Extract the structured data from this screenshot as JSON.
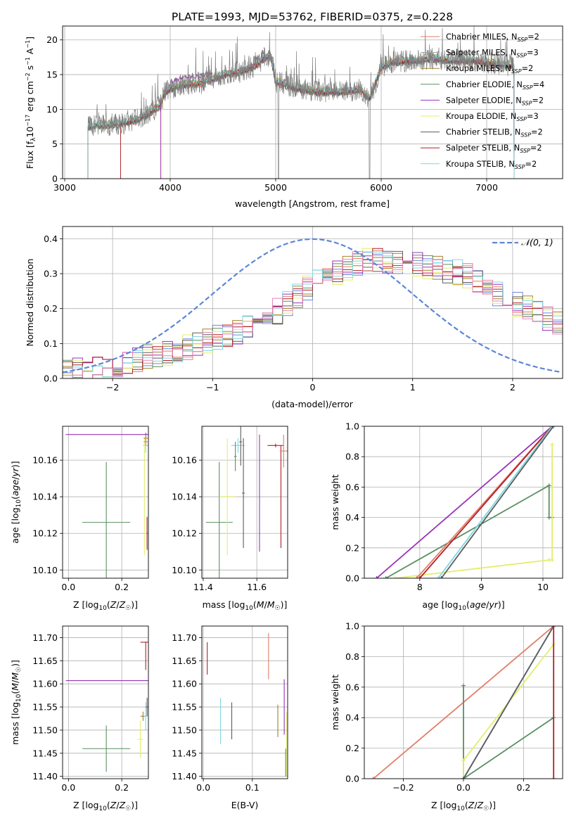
{
  "colors": {
    "chabrier_miles": "#E27E6A",
    "salpeter_miles": "#9AA6A8",
    "kroupa_miles": "#A5812A",
    "chabrier_elodie": "#5A8F62",
    "salpeter_elodie": "#9A33B8",
    "kroupa_elodie": "#E3EE6C",
    "chabrier_stelib": "#5D5D5D",
    "salpeter_stelib": "#B31F26",
    "kroupa_stelib": "#7ED8E2",
    "normal_curve": "#5B87D9",
    "spectrum_grey": "#808080"
  },
  "chart_data": [
    {
      "id": "spectrum",
      "type": "line",
      "title": "PLATE=1993, MJD=53762, FIBERID=0375, z=0.228",
      "xlabel": "wavelength [Angstrom, rest frame]",
      "ylabel": "Flux [f_λ10^-17 erg cm^-2 s^-1 A^-1]",
      "xlim": [
        2980,
        7720
      ],
      "ylim": [
        0,
        22
      ],
      "xticks": [
        3000,
        4000,
        5000,
        6000,
        7000
      ],
      "yticks": [
        0,
        5,
        10,
        15,
        20
      ],
      "legend_position": "right",
      "legend": [
        {
          "name": "Chabrier MILES, N_SSP=2",
          "color_key": "chabrier_miles"
        },
        {
          "name": "Salpeter MILES, N_SSP=3",
          "color_key": "salpeter_miles"
        },
        {
          "name": "Kroupa MILES, N_SSP=2",
          "color_key": "kroupa_miles"
        },
        {
          "name": "Chabrier ELODIE, N_SSP=4",
          "color_key": "chabrier_elodie"
        },
        {
          "name": "Salpeter ELODIE, N_SSP=2",
          "color_key": "salpeter_elodie"
        },
        {
          "name": "Kroupa ELODIE, N_SSP=3",
          "color_key": "kroupa_elodie"
        },
        {
          "name": "Chabrier STELIB, N_SSP=2",
          "color_key": "chabrier_stelib"
        },
        {
          "name": "Salpeter STELIB, N_SSP=2",
          "color_key": "salpeter_stelib"
        },
        {
          "name": "Kroupa STELIB, N_SSP=2",
          "color_key": "kroupa_stelib"
        }
      ],
      "data_range_start": [
        3220,
        3530,
        3220,
        3220,
        3910,
        3920,
        3220,
        3530,
        3220
      ],
      "data_range_end": [
        7260,
        7260,
        7260,
        7260,
        7260,
        7260,
        7260,
        7260,
        7260
      ],
      "continuum_anchor_points": {
        "x": [
          3220,
          3300,
          3500,
          3700,
          3800,
          3900,
          3950,
          4000,
          4100,
          4300,
          4500,
          4700,
          4800,
          4900,
          4950,
          5000,
          5200,
          5400,
          5600,
          5800,
          5890,
          6000,
          6100,
          6300,
          6500,
          6700,
          6900,
          7100,
          7260
        ],
        "y": [
          7.5,
          7.8,
          7.8,
          8.6,
          9.5,
          10.5,
          12.5,
          13.0,
          13.5,
          13.8,
          15.0,
          15.5,
          16.3,
          17.5,
          17.8,
          14.0,
          13.0,
          12.5,
          12.5,
          12.8,
          11.5,
          16.0,
          16.8,
          17.0,
          17.3,
          17.0,
          17.0,
          16.5,
          16.3
        ]
      },
      "data_gaps": [
        {
          "range": [
            5020,
            5890
          ],
          "drops_to": 0
        }
      ]
    },
    {
      "id": "residual_distribution",
      "type": "line",
      "xlabel": "(data-model)/error",
      "ylabel": "Normed distribution",
      "xlim": [
        -2.5,
        2.5
      ],
      "ylim": [
        0,
        0.435
      ],
      "xticks": [
        -2,
        -1,
        0,
        1,
        2
      ],
      "yticks": [
        0.0,
        0.1,
        0.2,
        0.3,
        0.4
      ],
      "legend_position": "top-right",
      "legend": [
        {
          "name": "𝒩(0, 1)",
          "color_key": "normal_curve",
          "dashed": true
        }
      ],
      "histogram_peak_shape": {
        "x": [
          -2.5,
          -2.0,
          -1.5,
          -1.0,
          -0.5,
          0.0,
          0.5,
          1.0,
          1.5,
          2.0,
          2.5
        ],
        "y": [
          0.02,
          0.035,
          0.07,
          0.11,
          0.16,
          0.27,
          0.34,
          0.33,
          0.3,
          0.22,
          0.15
        ]
      }
    },
    {
      "id": "age_vs_Z",
      "type": "scatter",
      "xlabel": "Z [log10(Z/Z☉)]",
      "ylabel": "age  [log10(age/yr)]",
      "xlim": [
        -0.022,
        0.3
      ],
      "ylim": [
        10.0955,
        10.1785
      ],
      "xticks": [
        0.0,
        0.2
      ],
      "yticks": [
        10.1,
        10.12,
        10.14,
        10.16
      ],
      "points": [
        {
          "x": 0.142,
          "y": 10.126,
          "xerr": 0.09,
          "yerr": 0.033,
          "color_key": "chabrier_elodie"
        },
        {
          "x": 0.29,
          "y": 10.174,
          "xerr": 0.3,
          "yerr": 0.001,
          "color_key": "salpeter_elodie"
        },
        {
          "x": 0.29,
          "y": 10.168,
          "xerr": 0.01,
          "yerr": 0.004,
          "color_key": "kroupa_stelib"
        },
        {
          "x": 0.285,
          "y": 10.14,
          "xerr": 0.005,
          "yerr": 0.032,
          "color_key": "kroupa_elodie"
        },
        {
          "x": 0.295,
          "y": 10.12,
          "xerr": 0.002,
          "yerr": 0.009,
          "color_key": "salpeter_stelib"
        },
        {
          "x": 0.29,
          "y": 10.172,
          "xerr": 0.008,
          "yerr": 0.002,
          "color_key": "kroupa_miles"
        },
        {
          "x": 0.29,
          "y": 10.17,
          "xerr": 0.008,
          "yerr": 0.002,
          "color_key": "chabrier_miles"
        }
      ]
    },
    {
      "id": "age_vs_mass",
      "type": "scatter",
      "xlabel": "mass [log10(M/M☉)]",
      "ylabel": "",
      "xlim": [
        11.395,
        11.715
      ],
      "ylim": [
        10.0955,
        10.1785
      ],
      "xticks": [
        11.4,
        11.6
      ],
      "yticks": [
        10.1,
        10.12,
        10.14,
        10.16
      ],
      "points": [
        {
          "x": 11.46,
          "y": 10.126,
          "xerr": 0.05,
          "yerr": 0.033,
          "color_key": "chabrier_elodie"
        },
        {
          "x": 11.49,
          "y": 10.14,
          "xerr": 0.03,
          "yerr": 0.032,
          "color_key": "kroupa_elodie"
        },
        {
          "x": 11.53,
          "y": 10.168,
          "xerr": 0.025,
          "yerr": 0.004,
          "color_key": "kroupa_stelib"
        },
        {
          "x": 11.52,
          "y": 10.162,
          "xerr": 0.005,
          "yerr": 0.008,
          "color_key": "chabrier_elodie"
        },
        {
          "x": 11.54,
          "y": 10.17,
          "xerr": 0.005,
          "yerr": 0.013,
          "color_key": "chabrier_stelib"
        },
        {
          "x": 11.55,
          "y": 10.142,
          "xerr": 0.005,
          "yerr": 0.03,
          "color_key": "chabrier_stelib"
        },
        {
          "x": 11.61,
          "y": 10.142,
          "xerr": 0.001,
          "yerr": 0.032,
          "color_key": "salpeter_elodie"
        },
        {
          "x": 11.67,
          "y": 10.168,
          "xerr": 0.03,
          "yerr": 0.001,
          "color_key": "salpeter_stelib"
        },
        {
          "x": 11.69,
          "y": 10.14,
          "xerr": 0.001,
          "yerr": 0.028,
          "color_key": "salpeter_stelib"
        },
        {
          "x": 11.7,
          "y": 10.165,
          "xerr": 0.015,
          "yerr": 0.009,
          "color_key": "chabrier_miles"
        }
      ]
    },
    {
      "id": "mass_weight_vs_age",
      "type": "line",
      "xlabel": "age  [log10(age/yr)]",
      "ylabel": "mass weight",
      "xlim": [
        7.1,
        10.32
      ],
      "ylim": [
        0,
        1.0
      ],
      "xticks": [
        8,
        9,
        10
      ],
      "yticks": [
        0.0,
        0.2,
        0.4,
        0.6,
        0.8,
        1.0
      ],
      "series": [
        {
          "color_key": "salpeter_elodie",
          "x": [
            7.3,
            10.15
          ],
          "y": [
            0.0,
            1.0
          ]
        },
        {
          "color_key": "chabrier_elodie",
          "x": [
            7.45,
            10.1,
            10.1,
            10.15
          ],
          "y": [
            0.0,
            0.61,
            0.4,
            0.4
          ]
        },
        {
          "color_key": "kroupa_elodie",
          "x": [
            7.6,
            10.1,
            10.15,
            10.15
          ],
          "y": [
            0.0,
            0.12,
            0.12,
            0.88
          ]
        },
        {
          "color_key": "chabrier_miles",
          "x": [
            7.95,
            10.15
          ],
          "y": [
            0.0,
            1.0
          ]
        },
        {
          "color_key": "salpeter_stelib",
          "x": [
            8.0,
            10.15
          ],
          "y": [
            0.0,
            1.0
          ]
        },
        {
          "color_key": "kroupa_stelib",
          "x": [
            8.3,
            10.15
          ],
          "y": [
            0.0,
            1.0
          ]
        },
        {
          "color_key": "chabrier_stelib",
          "x": [
            8.35,
            10.17
          ],
          "y": [
            0.0,
            1.0
          ]
        }
      ]
    },
    {
      "id": "mass_vs_Z",
      "type": "scatter",
      "xlabel": "Z [log10(Z/Z☉)]",
      "ylabel": "mass [log10(M/M☉)]",
      "xlim": [
        -0.022,
        0.3
      ],
      "ylim": [
        11.395,
        11.725
      ],
      "xticks": [
        0.0,
        0.2
      ],
      "yticks": [
        11.4,
        11.45,
        11.5,
        11.55,
        11.6,
        11.65,
        11.7
      ],
      "points": [
        {
          "x": 0.142,
          "y": 11.46,
          "xerr": 0.09,
          "yerr": 0.05,
          "color_key": "chabrier_elodie"
        },
        {
          "x": 0.29,
          "y": 11.607,
          "xerr": 0.3,
          "yerr": 0.001,
          "color_key": "salpeter_elodie"
        },
        {
          "x": 0.29,
          "y": 11.69,
          "xerr": 0.02,
          "yerr": 0.001,
          "color_key": "salpeter_stelib"
        },
        {
          "x": 0.29,
          "y": 11.66,
          "xerr": 0.001,
          "yerr": 0.03,
          "color_key": "salpeter_stelib"
        },
        {
          "x": 0.27,
          "y": 11.48,
          "xerr": 0.01,
          "yerr": 0.04,
          "color_key": "kroupa_elodie"
        },
        {
          "x": 0.28,
          "y": 11.53,
          "xerr": 0.01,
          "yerr": 0.01,
          "color_key": "kroupa_miles"
        },
        {
          "x": 0.29,
          "y": 11.53,
          "xerr": 0.005,
          "yerr": 0.03,
          "color_key": "kroupa_stelib"
        },
        {
          "x": 0.295,
          "y": 11.55,
          "xerr": 0.005,
          "yerr": 0.02,
          "color_key": "chabrier_stelib"
        }
      ]
    },
    {
      "id": "mass_vs_ebv",
      "type": "scatter",
      "xlabel": "E(B-V)",
      "ylabel": "",
      "xlim": [
        -0.003,
        0.172
      ],
      "ylim": [
        11.395,
        11.725
      ],
      "xticks": [
        0.0,
        0.1
      ],
      "yticks": [
        11.4,
        11.45,
        11.5,
        11.55,
        11.6,
        11.65,
        11.7
      ],
      "points": [
        {
          "x": 0.008,
          "y": 11.655,
          "yerr": 0.035,
          "color_key": "salpeter_stelib"
        },
        {
          "x": 0.035,
          "y": 11.52,
          "yerr": 0.05,
          "color_key": "kroupa_stelib"
        },
        {
          "x": 0.058,
          "y": 11.52,
          "yerr": 0.04,
          "color_key": "chabrier_stelib"
        },
        {
          "x": 0.133,
          "y": 11.66,
          "yerr": 0.05,
          "color_key": "chabrier_miles"
        },
        {
          "x": 0.152,
          "y": 11.52,
          "yerr": 0.035,
          "color_key": "kroupa_miles"
        },
        {
          "x": 0.165,
          "y": 11.55,
          "yerr": 0.06,
          "color_key": "salpeter_elodie"
        },
        {
          "x": 0.17,
          "y": 11.47,
          "yerr": 0.07,
          "color_key": "kroupa_elodie"
        },
        {
          "x": 0.168,
          "y": 11.43,
          "yerr": 0.03,
          "color_key": "chabrier_elodie"
        }
      ]
    },
    {
      "id": "mass_weight_vs_Z",
      "type": "line",
      "xlabel": "Z [log10(Z/Z☉)]",
      "ylabel": "mass weight",
      "xlim": [
        -0.33,
        0.33
      ],
      "ylim": [
        0,
        1.0
      ],
      "xticks": [
        -0.2,
        0.0,
        0.2
      ],
      "yticks": [
        0.0,
        0.2,
        0.4,
        0.6,
        0.8,
        1.0
      ],
      "series": [
        {
          "color_key": "chabrier_miles",
          "x": [
            -0.3,
            0.3
          ],
          "y": [
            0.0,
            1.0
          ]
        },
        {
          "color_key": "chabrier_elodie",
          "x": [
            0.0,
            0.0,
            0.0,
            0.3
          ],
          "y": [
            0.0,
            0.61,
            0.0,
            0.4
          ]
        },
        {
          "color_key": "kroupa_elodie",
          "x": [
            0.0,
            0.0,
            0.3
          ],
          "y": [
            0.0,
            0.12,
            0.88
          ]
        },
        {
          "color_key": "salpeter_elodie",
          "x": [
            0.0,
            0.3
          ],
          "y": [
            0.0,
            1.0
          ]
        },
        {
          "color_key": "kroupa_stelib",
          "x": [
            0.0,
            0.3
          ],
          "y": [
            0.0,
            1.0
          ]
        },
        {
          "color_key": "chabrier_stelib",
          "x": [
            0.0,
            0.3
          ],
          "y": [
            0.0,
            1.0
          ]
        },
        {
          "color_key": "salpeter_stelib",
          "x": [
            0.3,
            0.3
          ],
          "y": [
            0.0,
            1.0
          ]
        }
      ]
    }
  ]
}
